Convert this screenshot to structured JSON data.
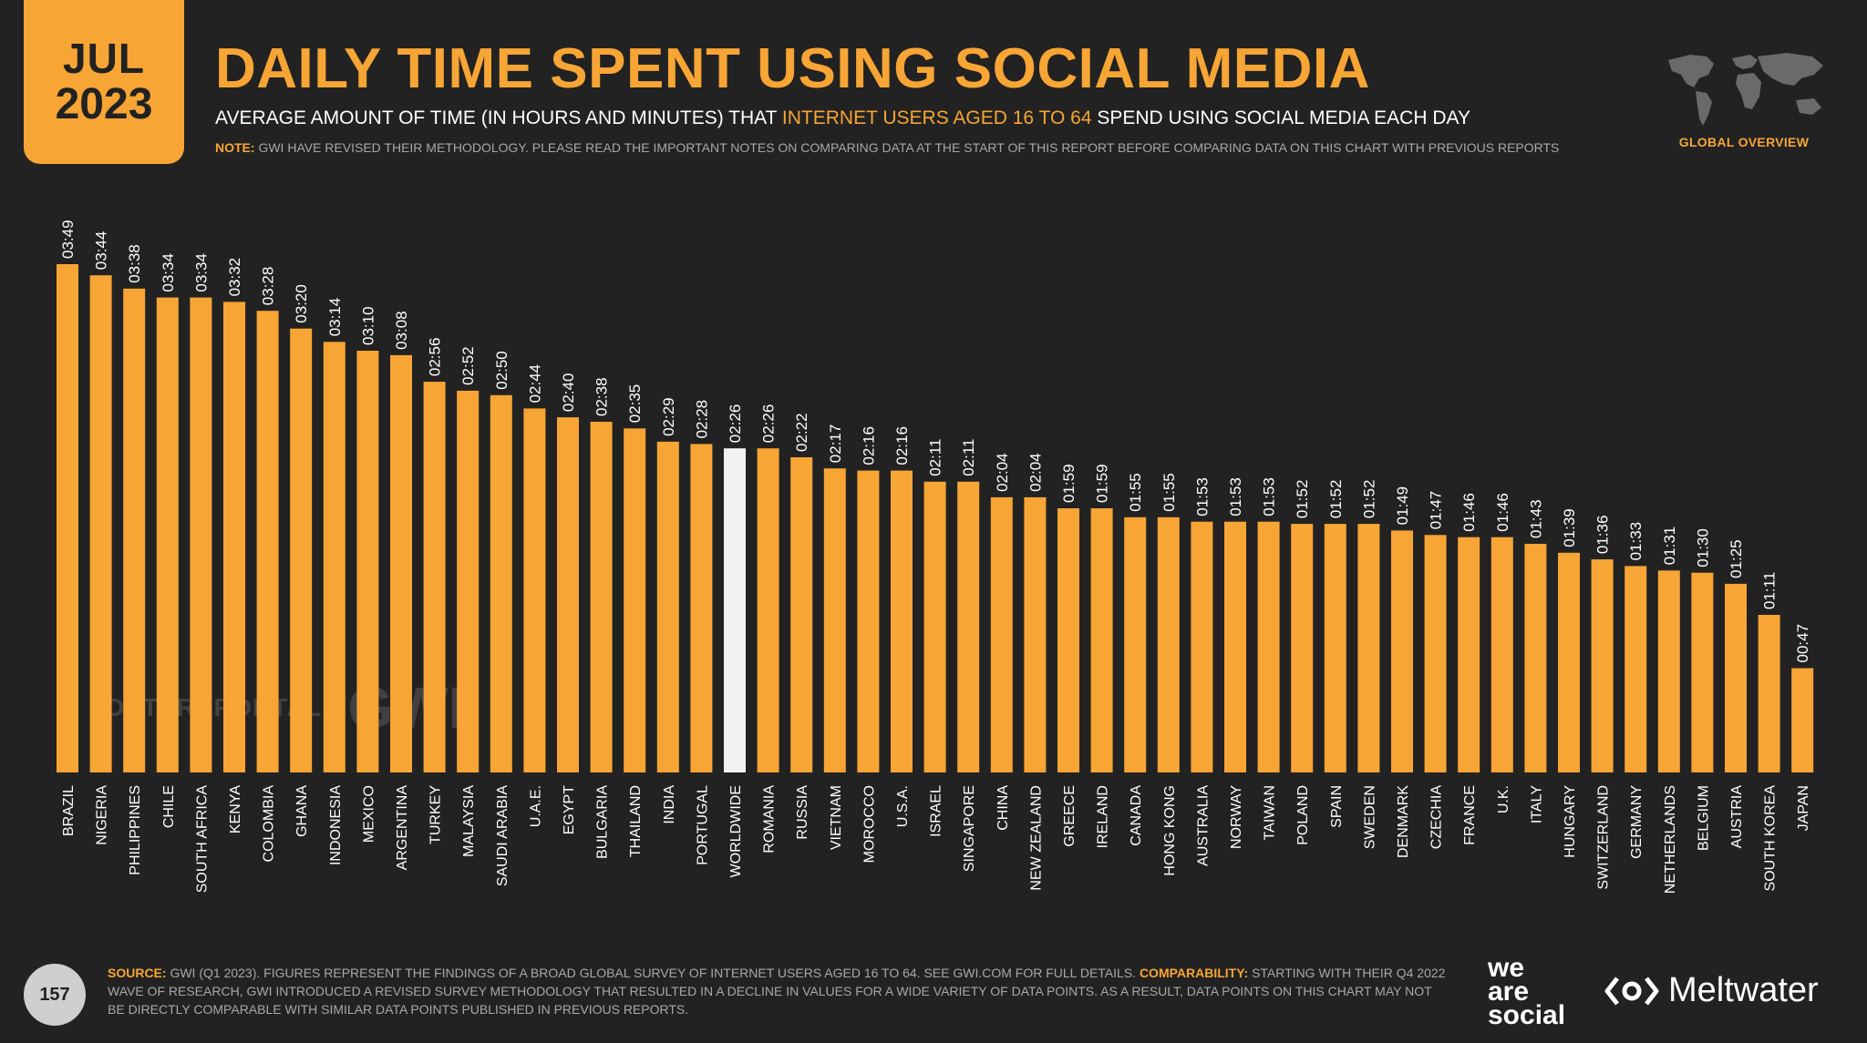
{
  "header": {
    "month": "JUL",
    "year": "2023",
    "title": "DAILY TIME SPENT USING SOCIAL MEDIA",
    "subtitle_part1": "AVERAGE AMOUNT OF TIME (IN HOURS AND MINUTES) THAT ",
    "subtitle_highlight": "INTERNET USERS AGED 16 TO 64",
    "subtitle_part2": " SPEND USING SOCIAL MEDIA EACH DAY",
    "note_label": "NOTE:",
    "note_text": " GWI HAVE REVISED THEIR METHODOLOGY. PLEASE READ THE IMPORTANT NOTES ON COMPARING DATA AT THE START OF THIS REPORT BEFORE COMPARING DATA ON THIS CHART WITH PREVIOUS REPORTS",
    "global_overview": "GLOBAL OVERVIEW"
  },
  "watermark": {
    "left": "DATAREPORTAL",
    "right": "GWI."
  },
  "footer": {
    "page_number": "157",
    "source_label": "SOURCE:",
    "source_text": " GWI (Q1 2023). FIGURES REPRESENT THE FINDINGS OF A BROAD GLOBAL SURVEY OF INTERNET USERS AGED 16 TO 64. SEE GWI.COM FOR FULL DETAILS. ",
    "comparability_label": "COMPARABILITY:",
    "comparability_text": " STARTING WITH THEIR Q4 2022 WAVE OF RESEARCH, GWI INTRODUCED A REVISED SURVEY METHODOLOGY THAT RESULTED IN A DECLINE IN VALUES FOR A WIDE VARIETY OF DATA POINTS. AS A RESULT, DATA POINTS ON THIS CHART MAY NOT BE DIRECTLY COMPARABLE WITH SIMILAR DATA POINTS PUBLISHED IN PREVIOUS REPORTS.",
    "brand_line1": "we",
    "brand_line2": "are",
    "brand_line3": "social",
    "brand2": "Meltwater"
  },
  "colors": {
    "background": "#222222",
    "accent": "#f7a535",
    "highlight_bar": "#f2f2f2",
    "text": "#ffffff",
    "muted": "#a8a8a8"
  },
  "chart_data": {
    "type": "bar",
    "categories": [
      "BRAZIL",
      "NIGERIA",
      "PHILIPPINES",
      "CHILE",
      "SOUTH AFRICA",
      "KENYA",
      "COLOMBIA",
      "GHANA",
      "INDONESIA",
      "MEXICO",
      "ARGENTINA",
      "TURKEY",
      "MALAYSIA",
      "SAUDI ARABIA",
      "U.A.E.",
      "EGYPT",
      "BULGARIA",
      "THAILAND",
      "INDIA",
      "PORTUGAL",
      "WORLDWIDE",
      "ROMANIA",
      "RUSSIA",
      "VIETNAM",
      "MOROCCO",
      "U.S.A.",
      "ISRAEL",
      "SINGAPORE",
      "CHINA",
      "NEW ZEALAND",
      "GREECE",
      "IRELAND",
      "CANADA",
      "HONG KONG",
      "AUSTRALIA",
      "NORWAY",
      "TAIWAN",
      "POLAND",
      "SPAIN",
      "SWEDEN",
      "DENMARK",
      "CZECHIA",
      "FRANCE",
      "U.K.",
      "ITALY",
      "HUNGARY",
      "SWITZERLAND",
      "GERMANY",
      "NETHERLANDS",
      "BELGIUM",
      "AUSTRIA",
      "SOUTH KOREA",
      "JAPAN"
    ],
    "labels": [
      "03:49",
      "03:44",
      "03:38",
      "03:34",
      "03:34",
      "03:32",
      "03:28",
      "03:20",
      "03:14",
      "03:10",
      "03:08",
      "02:56",
      "02:52",
      "02:50",
      "02:44",
      "02:40",
      "02:38",
      "02:35",
      "02:29",
      "02:28",
      "02:26",
      "02:26",
      "02:22",
      "02:17",
      "02:16",
      "02:16",
      "02:11",
      "02:11",
      "02:04",
      "02:04",
      "01:59",
      "01:59",
      "01:55",
      "01:55",
      "01:53",
      "01:53",
      "01:53",
      "01:52",
      "01:52",
      "01:52",
      "01:49",
      "01:47",
      "01:46",
      "01:46",
      "01:43",
      "01:39",
      "01:36",
      "01:33",
      "01:31",
      "01:30",
      "01:25",
      "01:11",
      "00:47"
    ],
    "values_minutes": [
      229,
      224,
      218,
      214,
      214,
      212,
      208,
      200,
      194,
      190,
      188,
      176,
      172,
      170,
      164,
      160,
      158,
      155,
      149,
      148,
      146,
      146,
      142,
      137,
      136,
      136,
      131,
      131,
      124,
      124,
      119,
      119,
      115,
      115,
      113,
      113,
      113,
      112,
      112,
      112,
      109,
      107,
      106,
      106,
      103,
      99,
      96,
      93,
      91,
      90,
      85,
      71,
      47
    ],
    "highlight_category": "WORLDWIDE",
    "ylim": [
      0,
      229
    ]
  }
}
